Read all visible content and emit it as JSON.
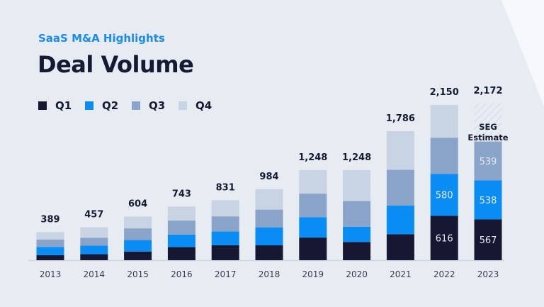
{
  "header": {
    "subtitle": "SaaS M&A Highlights",
    "title": "Deal Volume"
  },
  "colors": {
    "background": "#e7ebf2",
    "Q1": "#161833",
    "Q2": "#0a8cf5",
    "Q3": "#8aa3c8",
    "Q4": "#c8d3e3",
    "accent": "#1a8cf0"
  },
  "chart_data": {
    "type": "bar",
    "stacked": true,
    "title": "Deal Volume",
    "subtitle": "SaaS M&A Highlights",
    "legend_position": "top-left",
    "grid": false,
    "categories": [
      "2013",
      "2014",
      "2015",
      "2016",
      "2017",
      "2018",
      "2019",
      "2020",
      "2021",
      "2022",
      "2023"
    ],
    "series": [
      {
        "name": "Q1",
        "values": [
          70,
          83,
          120,
          181,
          207,
          206,
          313,
          252,
          358,
          616,
          567
        ]
      },
      {
        "name": "Q2",
        "values": [
          114,
          120,
          159,
          174,
          190,
          249,
          283,
          210,
          399,
          580,
          538
        ]
      },
      {
        "name": "Q3",
        "values": [
          103,
          107,
          162,
          194,
          210,
          246,
          326,
          357,
          494,
          500,
          539
        ]
      },
      {
        "name": "Q4",
        "values": [
          102,
          147,
          163,
          194,
          224,
          283,
          326,
          429,
          535,
          454,
          528
        ]
      }
    ],
    "totals": [
      "389",
      "457",
      "604",
      "743",
      "831",
      "984",
      "1,248",
      "1,248",
      "1,786",
      "2,150",
      "2,172"
    ],
    "segment_labels": [
      {
        "category": "2022",
        "series": "Q1",
        "text": "616"
      },
      {
        "category": "2022",
        "series": "Q2",
        "text": "580"
      },
      {
        "category": "2023",
        "series": "Q1",
        "text": "567"
      },
      {
        "category": "2023",
        "series": "Q2",
        "text": "538"
      },
      {
        "category": "2023",
        "series": "Q3",
        "text": "539"
      }
    ],
    "estimate": {
      "category": "2023",
      "series": "Q4",
      "label_line1": "SEG",
      "label_line2": "Estimate",
      "style": "hatched"
    },
    "ylim": [
      0,
      2172
    ]
  }
}
